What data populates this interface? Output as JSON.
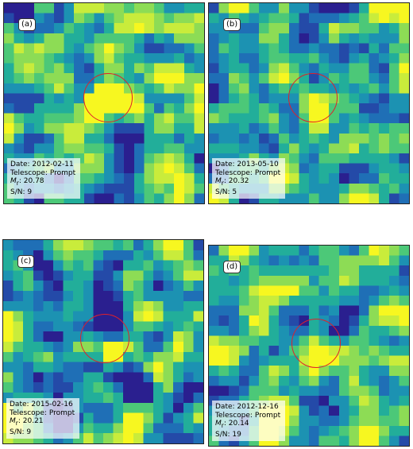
{
  "panels": [
    {
      "id": "a",
      "tag": "(a)",
      "date": "Date: 2012-02-11",
      "telescope": "Telescope: Prompt",
      "mag_value": "20.78",
      "sn": "S/N: 9"
    },
    {
      "id": "b",
      "tag": "(b)",
      "date": "Date: 2013-05-10",
      "telescope": "Telescope: Prompt",
      "mag_value": "20.32",
      "sn": "S/N: 5"
    },
    {
      "id": "c",
      "tag": "(c)",
      "date": "Date: 2015-02-16",
      "telescope": "Telescope: Prompt",
      "mag_value": "20.21",
      "sn": "S/N: 9"
    },
    {
      "id": "d",
      "tag": "(d)",
      "date": "Date: 2012-12-16",
      "telescope": "Telescope: Prompt",
      "mag_value": "20.14",
      "sn": "S/N: 19"
    }
  ],
  "colors": {
    "circle": "#e0202a",
    "colormap": [
      "#2a1f8f",
      "#244aa8",
      "#1f6fb6",
      "#1c92b2",
      "#22ae9a",
      "#4cc878",
      "#8ddc55",
      "#c9ec3b",
      "#f7f720"
    ]
  }
}
